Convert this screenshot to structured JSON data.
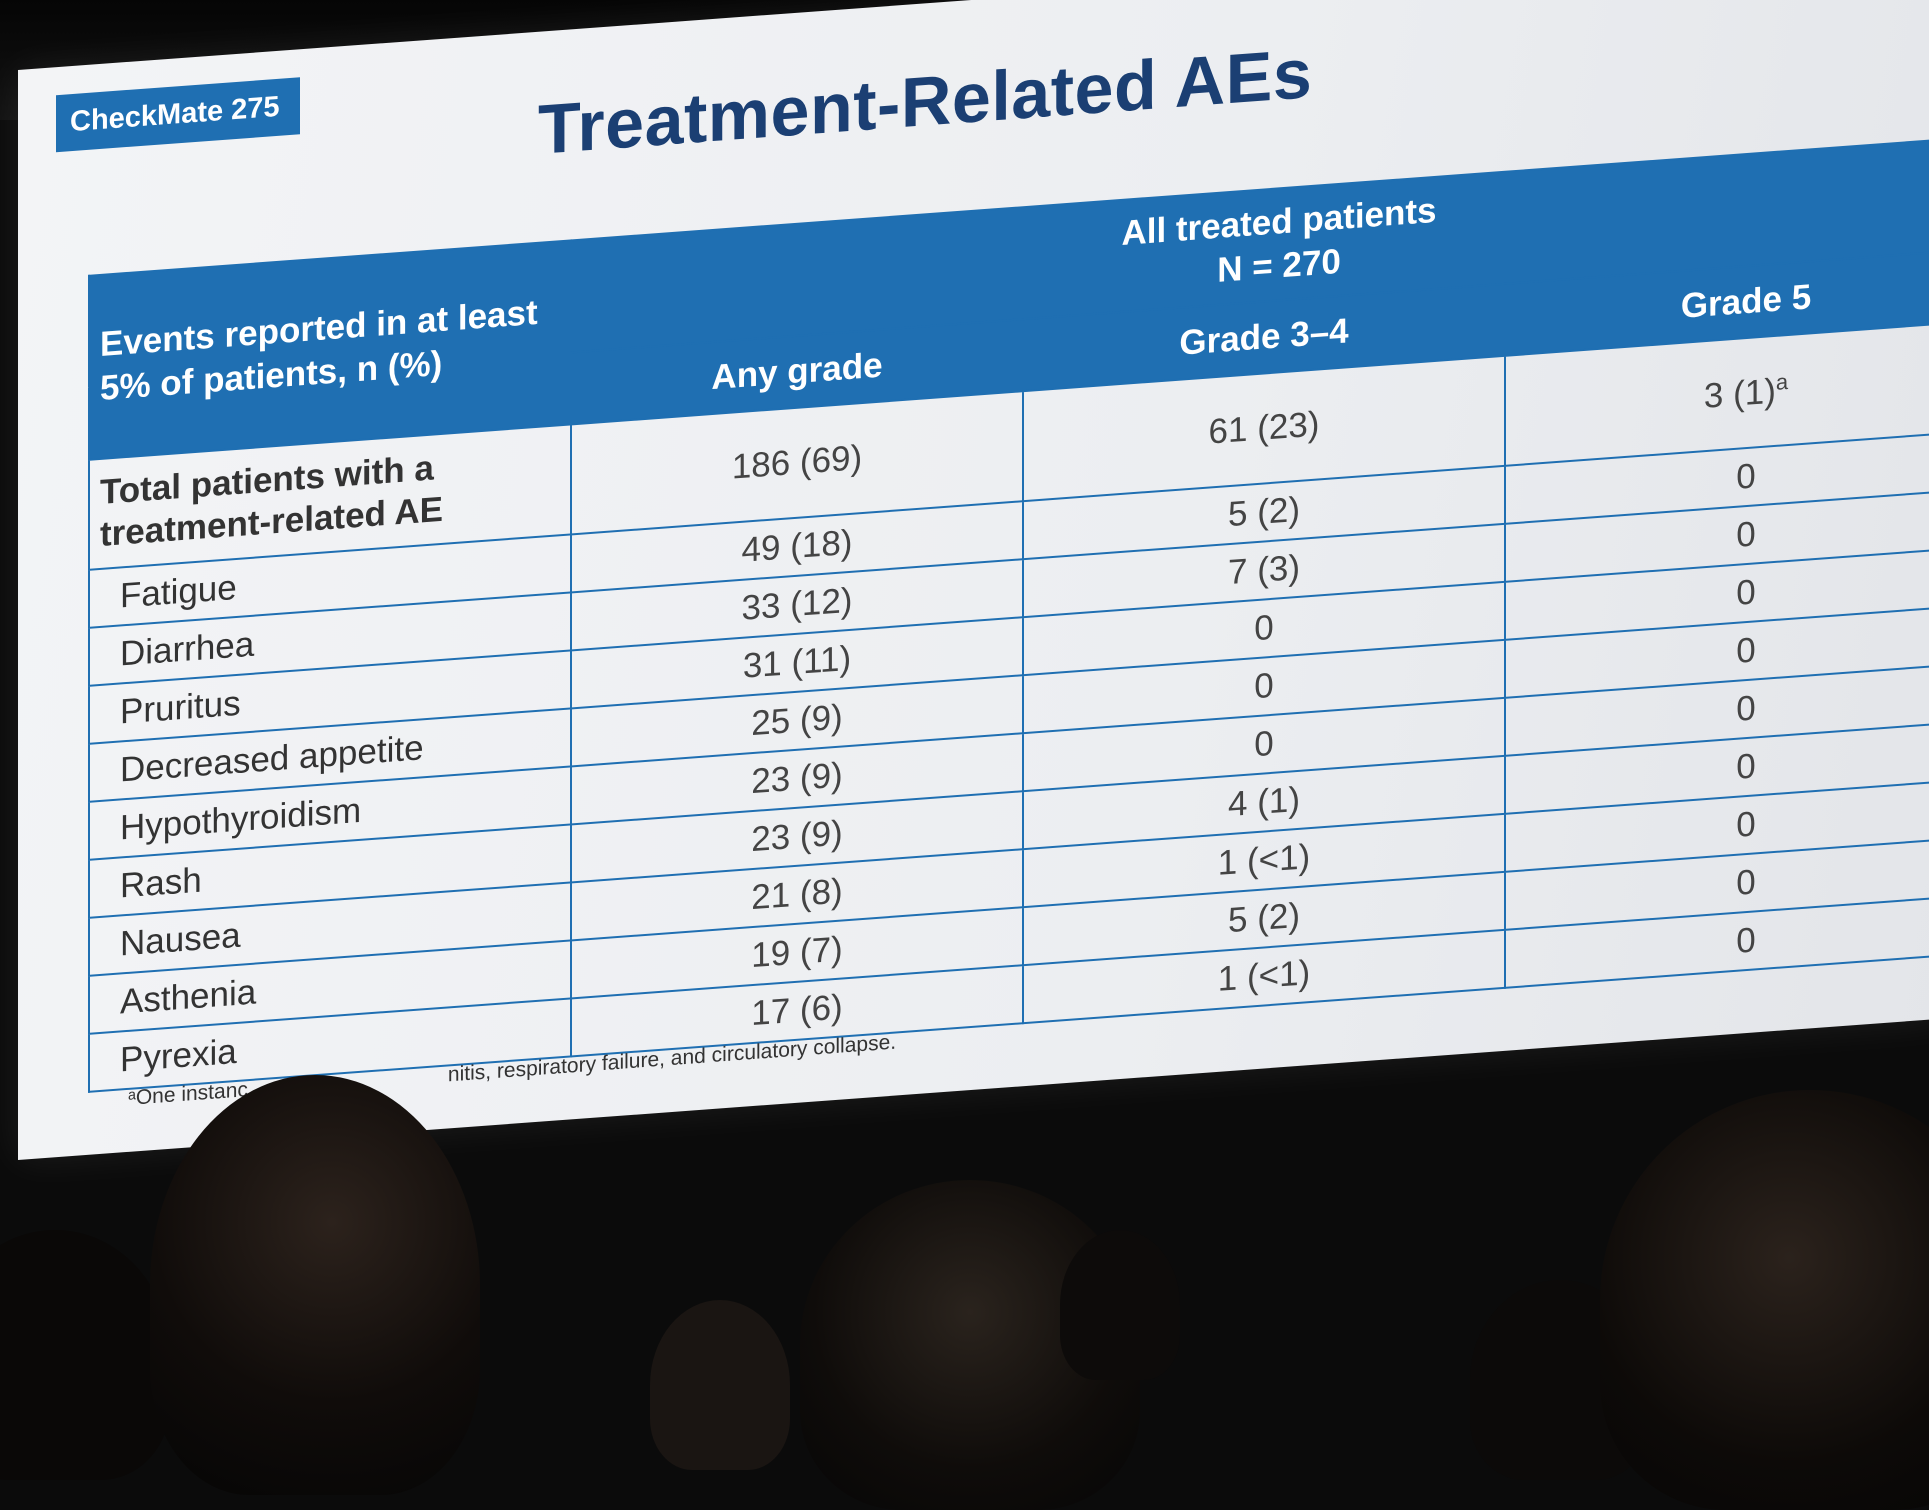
{
  "slide": {
    "tag": "CheckMate 275",
    "title": "Treatment-Related AEs",
    "table": {
      "row_header": "Events reported in at least 5% of patients, n (%)",
      "group_header_line1": "All treated patients",
      "group_header_line2": "N = 270",
      "columns": [
        "Any grade",
        "Grade 3–4",
        "Grade 5"
      ],
      "total_label": "Total patients with a treatment-related AE",
      "total_values": [
        "186 (69)",
        "61 (23)",
        "3 (1)"
      ],
      "total_grade5_footnote": "a",
      "rows": [
        {
          "label": "Fatigue",
          "any": "49 (18)",
          "g34": "5 (2)",
          "g5": "0"
        },
        {
          "label": "Diarrhea",
          "any": "33 (12)",
          "g34": "7 (3)",
          "g5": "0"
        },
        {
          "label": "Pruritus",
          "any": "31 (11)",
          "g34": "0",
          "g5": "0"
        },
        {
          "label": "Decreased appetite",
          "any": "25 (9)",
          "g34": "0",
          "g5": "0"
        },
        {
          "label": "Hypothyroidism",
          "any": "23 (9)",
          "g34": "0",
          "g5": "0"
        },
        {
          "label": "Rash",
          "any": "23 (9)",
          "g34": "4 (1)",
          "g5": "0"
        },
        {
          "label": "Nausea",
          "any": "21 (8)",
          "g34": "1 (<1)",
          "g5": "0"
        },
        {
          "label": "Asthenia",
          "any": "19 (7)",
          "g34": "5 (2)",
          "g5": "0"
        },
        {
          "label": "Pyrexia",
          "any": "17 (6)",
          "g34": "1 (<1)",
          "g5": "0"
        }
      ]
    },
    "footnote_start": "ᵃOne instanc",
    "footnote_end": "nitis, respiratory failure, and circulatory collapse."
  },
  "colors": {
    "header_blue": "#1f6fb2",
    "title_navy": "#1b3f73",
    "screen": "#eceef1"
  }
}
